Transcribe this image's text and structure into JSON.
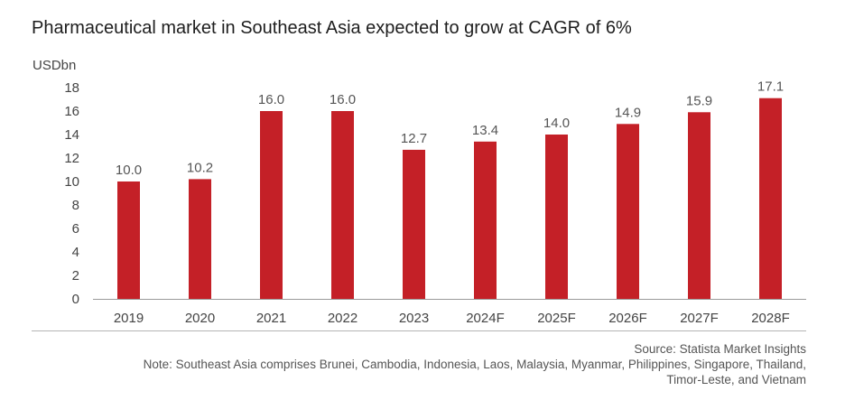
{
  "chart_data": {
    "type": "bar",
    "title": "Pharmaceutical market in Southeast Asia expected to grow at CAGR of 6%",
    "ylabel": "USDbn",
    "xlabel": "",
    "ylim": [
      0,
      18
    ],
    "yticks": [
      0,
      2,
      4,
      6,
      8,
      10,
      12,
      14,
      16,
      18
    ],
    "categories": [
      "2019",
      "2020",
      "2021",
      "2022",
      "2023",
      "2024F",
      "2025F",
      "2026F",
      "2027F",
      "2028F"
    ],
    "values": [
      10.0,
      10.2,
      16.0,
      16.0,
      12.7,
      13.4,
      14.0,
      14.9,
      15.9,
      17.1
    ],
    "value_labels": [
      "10.0",
      "10.2",
      "16.0",
      "16.0",
      "12.7",
      "13.4",
      "14.0",
      "14.9",
      "15.9",
      "17.1"
    ],
    "bar_color": "#c42027",
    "grid": false,
    "legend": "none"
  },
  "footer": {
    "source": "Source: Statista Market Insights",
    "note_line1": "Note: Southeast Asia comprises Brunei, Cambodia, Indonesia, Laos, Malaysia, Myanmar, Philippines, Singapore, Thailand,",
    "note_line2": "Timor-Leste, and Vietnam"
  }
}
